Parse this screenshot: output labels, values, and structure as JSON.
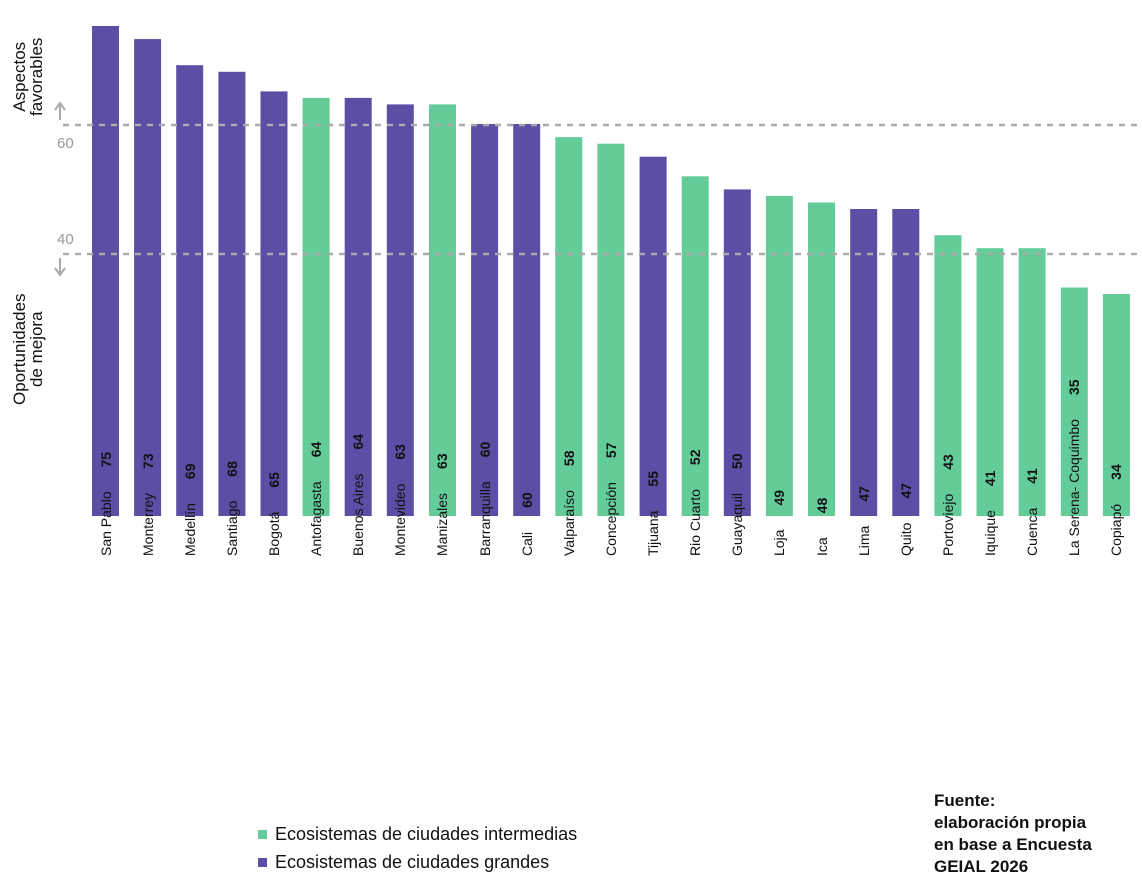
{
  "labels": {
    "top_label_line1": "Aspectos",
    "top_label_line2": "favorables",
    "bottom_label_line1": "Oportunidades",
    "bottom_label_line2": "de mejora"
  },
  "legend": {
    "intermediate": "Ecosistemas de ciudades intermedias",
    "large": "Ecosistemas de ciudades grandes"
  },
  "source": {
    "line1": "Fuente:",
    "line2": "elaboración propia",
    "line3": "en base a Encuesta",
    "line4": "GEIAL 2026"
  },
  "colors": {
    "intermediate": "#64cc99",
    "large": "#5a4ea5",
    "reference_line": "#aaaaaa",
    "reference_text": "#999999"
  },
  "chart_data": {
    "type": "bar",
    "categories": [
      "San Pablo",
      "Monterrey",
      "Medellín",
      "Santiago",
      "Bogotá",
      "Antofagasta",
      "Buenos Aires",
      "Montevideo",
      "Manizales",
      "Barranquilla",
      "Cali",
      "Valparaíso",
      "Concepción",
      "Tijuana",
      "Rio Cuarto",
      "Guayaquil",
      "Loja",
      "Ica",
      "Lima",
      "Quito",
      "Portoviejo",
      "Iquique",
      "Cuenca",
      "La Serena- Coquimbo",
      "Copiapó"
    ],
    "values": [
      75,
      73,
      69,
      68,
      65,
      64,
      64,
      63,
      63,
      60,
      60,
      58,
      57,
      55,
      52,
      50,
      49,
      48,
      47,
      47,
      43,
      41,
      41,
      35,
      34
    ],
    "groups": [
      "large",
      "large",
      "large",
      "large",
      "large",
      "intermediate",
      "large",
      "large",
      "intermediate",
      "large",
      "large",
      "intermediate",
      "intermediate",
      "large",
      "intermediate",
      "large",
      "intermediate",
      "intermediate",
      "large",
      "large",
      "intermediate",
      "intermediate",
      "intermediate",
      "intermediate",
      "intermediate"
    ],
    "reference_lines": [
      60,
      40
    ],
    "ylim": [
      0,
      75
    ],
    "series": [
      {
        "name": "Ecosistemas de ciudades intermedias",
        "color": "#64cc99"
      },
      {
        "name": "Ecosistemas de ciudades grandes",
        "color": "#5a4ea5"
      }
    ]
  }
}
